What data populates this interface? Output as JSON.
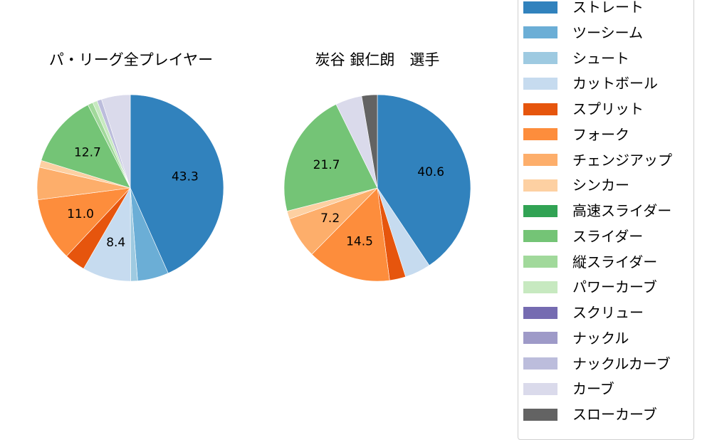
{
  "chart_data": [
    {
      "type": "pie",
      "title": "パ・リーグ全プレイヤー",
      "start_angle": 90,
      "direction": "clockwise",
      "categories": [
        "ストレート",
        "ツーシーム",
        "シュート",
        "カットボール",
        "スプリット",
        "フォーク",
        "チェンジアップ",
        "シンカー",
        "高速スライダー",
        "スライダー",
        "縦スライダー",
        "パワーカーブ",
        "スクリュー",
        "ナックル",
        "ナックルカーブ",
        "カーブ",
        "スローカーブ"
      ],
      "values": [
        43.3,
        5.4,
        1.2,
        8.4,
        3.6,
        11.0,
        5.6,
        1.2,
        0,
        12.7,
        0.9,
        0.8,
        0,
        0,
        0.8,
        5.0,
        0
      ],
      "labels": [
        "43.3",
        "",
        "",
        "8.4",
        "",
        "11.0",
        "",
        "",
        "",
        "12.7",
        "",
        "",
        "",
        "",
        "",
        "",
        ""
      ]
    },
    {
      "type": "pie",
      "title": "炭谷 銀仁朗　選手",
      "start_angle": 90,
      "direction": "clockwise",
      "categories": [
        "ストレート",
        "ツーシーム",
        "シュート",
        "カットボール",
        "スプリット",
        "フォーク",
        "チェンジアップ",
        "シンカー",
        "高速スライダー",
        "スライダー",
        "縦スライダー",
        "パワーカーブ",
        "スクリュー",
        "ナックル",
        "ナックルカーブ",
        "カーブ",
        "スローカーブ"
      ],
      "values": [
        40.6,
        0,
        0,
        4.5,
        2.8,
        14.5,
        7.2,
        1.4,
        0,
        21.7,
        0,
        0,
        0,
        0,
        0,
        4.6,
        2.7
      ],
      "labels": [
        "40.6",
        "",
        "",
        "",
        "",
        "14.5",
        "7.2",
        "",
        "",
        "21.7",
        "",
        "",
        "",
        "",
        "",
        "",
        ""
      ]
    }
  ],
  "titles": {
    "left": "パ・リーグ全プレイヤー",
    "right": "炭谷 銀仁朗　選手"
  },
  "legend": {
    "items": [
      {
        "label": "ストレート",
        "color": "#3182bd"
      },
      {
        "label": "ツーシーム",
        "color": "#6baed6"
      },
      {
        "label": "シュート",
        "color": "#9ecae1"
      },
      {
        "label": "カットボール",
        "color": "#c6dbef"
      },
      {
        "label": "スプリット",
        "color": "#e6550d"
      },
      {
        "label": "フォーク",
        "color": "#fd8d3c"
      },
      {
        "label": "チェンジアップ",
        "color": "#fdae6b"
      },
      {
        "label": "シンカー",
        "color": "#fdd0a2"
      },
      {
        "label": "高速スライダー",
        "color": "#31a354"
      },
      {
        "label": "スライダー",
        "color": "#74c476"
      },
      {
        "label": "縦スライダー",
        "color": "#a1d99b"
      },
      {
        "label": "パワーカーブ",
        "color": "#c7e9c0"
      },
      {
        "label": "スクリュー",
        "color": "#756bb1"
      },
      {
        "label": "ナックル",
        "color": "#9e9ac8"
      },
      {
        "label": "ナックルカーブ",
        "color": "#bcbddc"
      },
      {
        "label": "カーブ",
        "color": "#dadaeb"
      },
      {
        "label": "スローカーブ",
        "color": "#636363"
      }
    ]
  }
}
